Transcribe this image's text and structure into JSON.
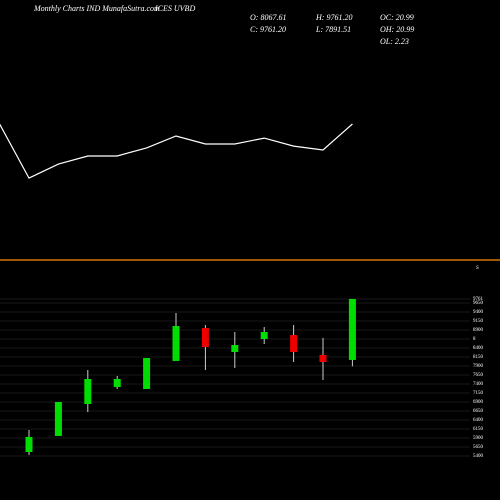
{
  "header": {
    "site": "Monthly Charts IND MunafaSutra.com",
    "symbol": "ICES UVBD",
    "stats": [
      [
        "O: 8067.61",
        "H: 9761.20",
        "OC: 20.99"
      ],
      [
        "C: 9761.20",
        "L: 7891.51",
        "OH: 20.99"
      ],
      [
        "",
        "",
        "OL: 2.23"
      ]
    ]
  },
  "chart_data": [
    {
      "type": "line",
      "color": "#ffffff",
      "ylim": [
        0,
        100
      ],
      "values": [
        52.3,
        31.5,
        36.9,
        40,
        40,
        43.1,
        47.7,
        44.6,
        44.6,
        46.9,
        43.8,
        42.3,
        52.3
      ]
    },
    {
      "type": "candlestick",
      "level_label": "S",
      "up_color": "#00dd00",
      "down_color": "#ee0000",
      "grid": true,
      "open": [
        5511,
        5956,
        6844,
        7317,
        7261,
        8039,
        8956,
        8289,
        8650,
        8761,
        8206,
        8067.61
      ],
      "high": [
        6122,
        6900,
        7789,
        7622,
        8122,
        9372,
        9039,
        8844,
        8983,
        9039,
        8678,
        9761.2
      ],
      "low": [
        5428,
        5956,
        6622,
        7261,
        7261,
        8039,
        7789,
        7844,
        8511,
        8011,
        7511,
        7891.51
      ],
      "close": [
        5928,
        6900,
        7539,
        7539,
        8122,
        9011,
        8428,
        8483,
        8844,
        8289,
        8011,
        9761.2
      ],
      "ylim": [
        5300,
        9900
      ],
      "yticks": [
        {
          "value": 9761,
          "label": "9761"
        },
        9650,
        9400,
        9150,
        8900,
        {
          "value": 8650,
          "label": "8"
        },
        8400,
        8150,
        7900,
        7650,
        7400,
        7150,
        6900,
        6650,
        6400,
        6150,
        5900,
        5650,
        5400
      ]
    }
  ]
}
